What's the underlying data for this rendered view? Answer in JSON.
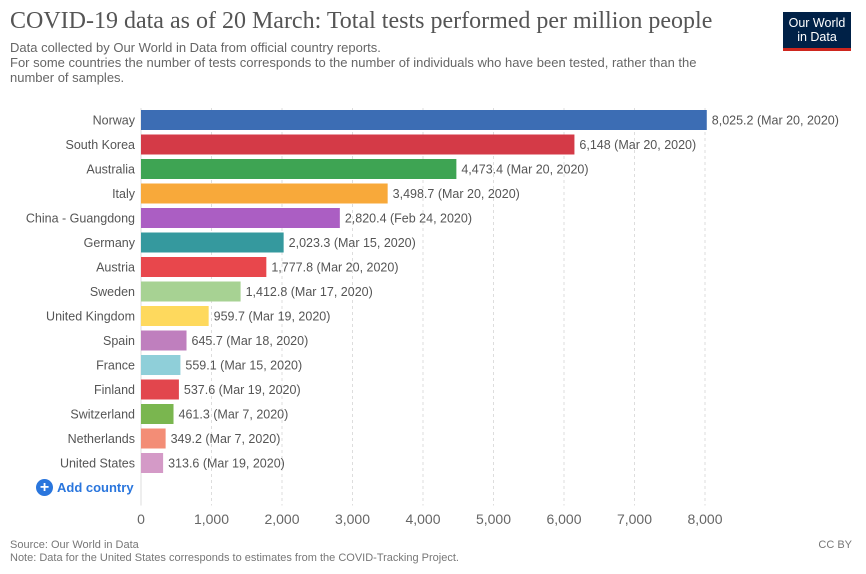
{
  "header": {
    "title": "COVID-19 data as of 20 March: Total tests performed per million people",
    "subtitle_line1": "Data collected by Our World in Data from official country reports.",
    "subtitle_line2": "For some countries the number of tests corresponds to the number of individuals who have been tested, rather than the",
    "subtitle_line3": "number of samples.",
    "logo_line1": "Our World",
    "logo_line2": "in Data"
  },
  "controls": {
    "add_country_label": "Add country"
  },
  "footer": {
    "source": "Source: Our World in Data",
    "note": "Note: Data for the United States corresponds to estimates from the COVID-Tracking Project.",
    "license": "CC BY"
  },
  "chart_data": {
    "type": "bar",
    "orientation": "horizontal",
    "xlim": [
      0,
      8000
    ],
    "xticks": [
      0,
      1000,
      2000,
      3000,
      4000,
      5000,
      6000,
      7000,
      8000
    ],
    "xtick_labels": [
      "0",
      "1,000",
      "2,000",
      "3,000",
      "4,000",
      "5,000",
      "6,000",
      "7,000",
      "8,000"
    ],
    "grid": true,
    "categories": [
      "Norway",
      "South Korea",
      "Australia",
      "Italy",
      "China - Guangdong",
      "Germany",
      "Austria",
      "Sweden",
      "United Kingdom",
      "Spain",
      "France",
      "Finland",
      "Switzerland",
      "Netherlands",
      "United States"
    ],
    "values": [
      8025.2,
      6148,
      4473.4,
      3498.7,
      2820.4,
      2023.3,
      1777.8,
      1412.8,
      959.7,
      645.7,
      559.1,
      537.6,
      461.3,
      349.2,
      313.6
    ],
    "value_labels": [
      "8,025.2 (Mar 20, 2020)",
      "6,148 (Mar 20, 2020)",
      "4,473.4 (Mar 20, 2020)",
      "3,498.7 (Mar 20, 2020)",
      "2,820.4 (Feb 24, 2020)",
      "2,023.3 (Mar 15, 2020)",
      "1,777.8 (Mar 20, 2020)",
      "1,412.8 (Mar 17, 2020)",
      "959.7 (Mar 19, 2020)",
      "645.7 (Mar 18, 2020)",
      "559.1 (Mar 15, 2020)",
      "537.6 (Mar 19, 2020)",
      "461.3 (Mar 7, 2020)",
      "349.2 (Mar 7, 2020)",
      "313.6 (Mar 19, 2020)"
    ],
    "colors": [
      "#3c6db4",
      "#d43a47",
      "#3ea453",
      "#f8a93a",
      "#ab5ec3",
      "#35999e",
      "#e8474c",
      "#a7d293",
      "#fed95d",
      "#bf7fbe",
      "#8fcfd9",
      "#e2464d",
      "#7ab64f",
      "#f38d76",
      "#d49ac7"
    ]
  }
}
